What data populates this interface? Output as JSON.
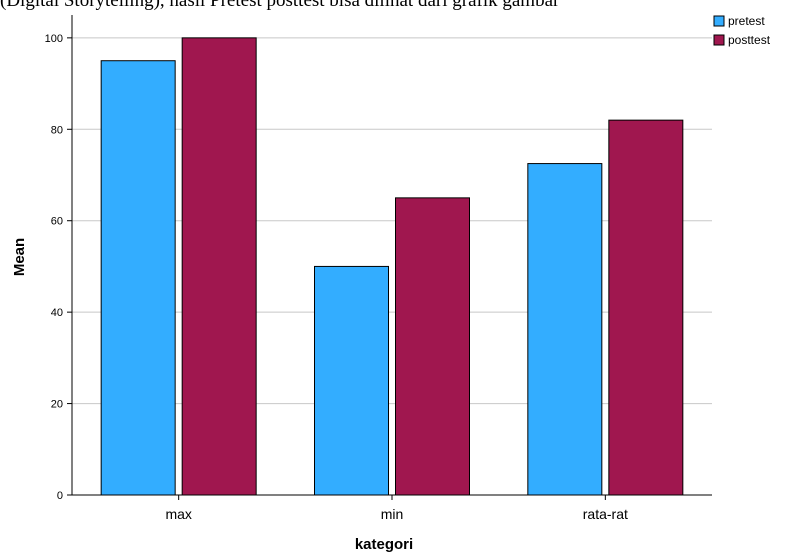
{
  "header_text": "(Digital Storytelling), hasil Pretest posttest bisa dilihat dari grafik gambar",
  "colors": {
    "pretest": "#33adff",
    "posttest": "#a0174f",
    "grid": "#c8c8c8",
    "axis": "#000000"
  },
  "chart_data": {
    "type": "bar",
    "title": "",
    "xlabel": "kategori",
    "ylabel": "Mean",
    "categories": [
      "max",
      "min",
      "rata-rat"
    ],
    "series": [
      {
        "name": "pretest",
        "values": [
          95,
          50,
          72.5
        ]
      },
      {
        "name": "posttest",
        "values": [
          100,
          65,
          82
        ]
      }
    ],
    "ylim": [
      0,
      105
    ],
    "yticks": [
      0,
      20,
      40,
      60,
      80,
      100
    ],
    "grid": true,
    "legend": "top-right"
  }
}
